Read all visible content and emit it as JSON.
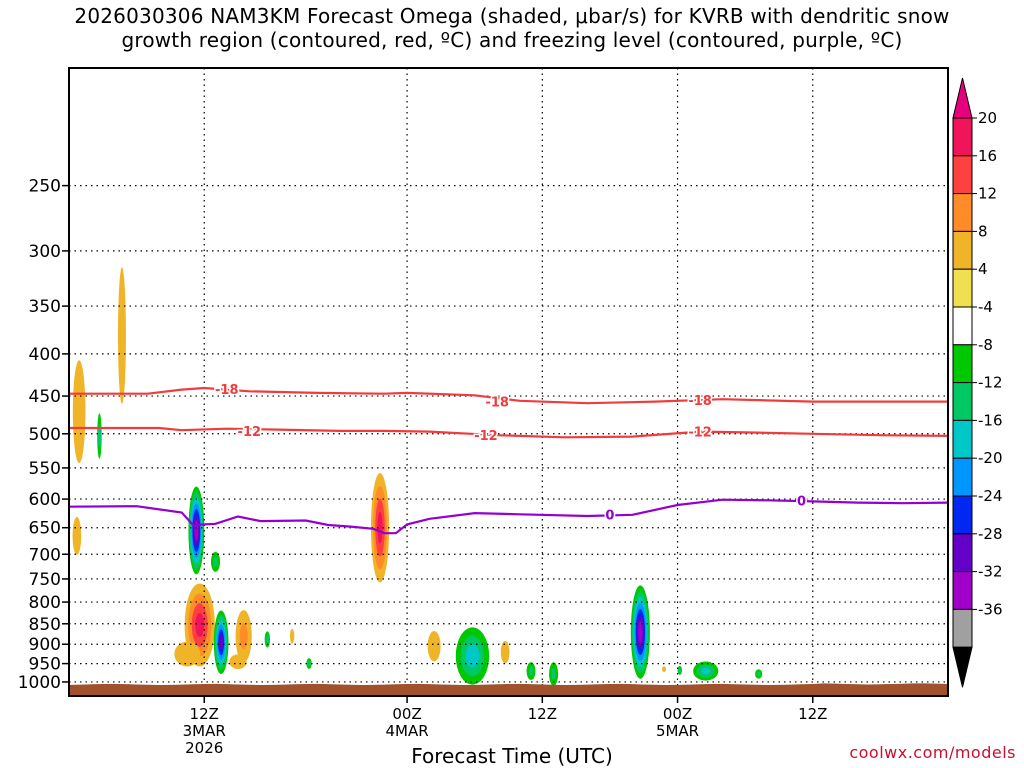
{
  "title": {
    "line1": "2026030306 NAM3KM Forecast Omega (shaded, μbar/s) for KVRB with dendritic snow",
    "line2": "growth region (contoured, red, ºC) and freezing level (contoured, purple, ºC)"
  },
  "credit": "coolwx.com/models",
  "chart_data": {
    "type": "heatmap",
    "xlabel": "Forecast Time (UTC)",
    "ylabel": "",
    "x_range_hours": [
      -6,
      72
    ],
    "x_ticks": [
      {
        "hour": 6,
        "lines": [
          "12Z",
          "3MAR",
          "2026"
        ]
      },
      {
        "hour": 24,
        "lines": [
          "00Z",
          "4MAR"
        ]
      },
      {
        "hour": 36,
        "lines": [
          "12Z"
        ]
      },
      {
        "hour": 48,
        "lines": [
          "00Z",
          "5MAR"
        ]
      },
      {
        "hour": 60,
        "lines": [
          "12Z"
        ]
      }
    ],
    "y_scale": "log-pressure",
    "y_range_hPa": [
      1040,
      180
    ],
    "y_ticks": [
      250,
      300,
      350,
      400,
      450,
      500,
      550,
      600,
      650,
      700,
      750,
      800,
      850,
      900,
      950,
      1000
    ],
    "colorbar": {
      "labels": [
        "20",
        "16",
        "12",
        "8",
        "4",
        "-4",
        "-8",
        "-12",
        "-16",
        "-20",
        "-24",
        "-28",
        "-32",
        "-36"
      ],
      "colors": [
        "#f0145a",
        "#ff4040",
        "#ff8c28",
        "#f0b428",
        "#f0e050",
        "#ffffff",
        "#00c800",
        "#00c864",
        "#00c8c8",
        "#0096ff",
        "#0028f0",
        "#6400c8",
        "#a000c8",
        "#a0a0a0"
      ],
      "upper_arrow": "#e6007e",
      "lower_arrow": "#000000"
    },
    "contours": [
      {
        "level": "-18",
        "color": "#f03c3c",
        "points": [
          [
            -6,
            447
          ],
          [
            1,
            447
          ],
          [
            4,
            442
          ],
          [
            6,
            440
          ],
          [
            10,
            444
          ],
          [
            16,
            446
          ],
          [
            22,
            447
          ],
          [
            24,
            446
          ],
          [
            30,
            449
          ],
          [
            34,
            456
          ],
          [
            40,
            459
          ],
          [
            46,
            457
          ],
          [
            52,
            454
          ],
          [
            60,
            457
          ],
          [
            66,
            457
          ],
          [
            72,
            457
          ]
        ],
        "labels": [
          [
            8,
            441
          ],
          [
            32,
            457
          ],
          [
            50,
            455
          ]
        ]
      },
      {
        "level": "-12",
        "color": "#f03c3c",
        "points": [
          [
            -6,
            492
          ],
          [
            2,
            492
          ],
          [
            4,
            495
          ],
          [
            8,
            493
          ],
          [
            12,
            494
          ],
          [
            18,
            496
          ],
          [
            22,
            496
          ],
          [
            26,
            497
          ],
          [
            32,
            502
          ],
          [
            38,
            505
          ],
          [
            44,
            504
          ],
          [
            50,
            497
          ],
          [
            54,
            498
          ],
          [
            60,
            500
          ],
          [
            66,
            502
          ],
          [
            72,
            503
          ]
        ],
        "labels": [
          [
            10,
            496
          ],
          [
            31,
            502
          ],
          [
            50,
            497
          ]
        ]
      },
      {
        "level": "0",
        "color": "#9400d3",
        "points": [
          [
            -6,
            613
          ],
          [
            0,
            612
          ],
          [
            4,
            623
          ],
          [
            5,
            645
          ],
          [
            7,
            643
          ],
          [
            9,
            630
          ],
          [
            11,
            638
          ],
          [
            15,
            637
          ],
          [
            17,
            645
          ],
          [
            19,
            648
          ],
          [
            21,
            652
          ],
          [
            22,
            660
          ],
          [
            23,
            660
          ],
          [
            24,
            644
          ],
          [
            26,
            634
          ],
          [
            30,
            624
          ],
          [
            34,
            626
          ],
          [
            40,
            629
          ],
          [
            44,
            627
          ],
          [
            48,
            610
          ],
          [
            52,
            601
          ],
          [
            56,
            602
          ],
          [
            60,
            604
          ],
          [
            64,
            606
          ],
          [
            68,
            607
          ],
          [
            72,
            606
          ]
        ],
        "labels": [
          [
            42,
            626
          ],
          [
            59,
            602
          ]
        ]
      }
    ],
    "omega_blobs": [
      {
        "x": -5.1,
        "p": 470,
        "rx": 0.8,
        "rp": 95,
        "value": 6
      },
      {
        "x": -5.3,
        "p": 665,
        "rx": 0.6,
        "rp": 55,
        "value": 5
      },
      {
        "x": -3.3,
        "p": 503,
        "rx": 0.25,
        "rp": 40,
        "value": -9
      },
      {
        "x": -1.3,
        "p": 380,
        "rx": 0.55,
        "rp": 110,
        "value": 5
      },
      {
        "x": 5.3,
        "p": 655,
        "rx": 0.75,
        "rp": 85,
        "value": -30
      },
      {
        "x": 5.6,
        "p": 853,
        "rx": 1.5,
        "rp": 110,
        "value": 17
      },
      {
        "x": 7.5,
        "p": 895,
        "rx": 0.7,
        "rp": 85,
        "value": -26
      },
      {
        "x": 9.5,
        "p": 880,
        "rx": 0.9,
        "rp": 80,
        "value": 9
      },
      {
        "x": 7.0,
        "p": 715,
        "rx": 0.5,
        "rp": 25,
        "value": -9
      },
      {
        "x": 4.5,
        "p": 925,
        "rx": 1.8,
        "rp": 50,
        "value": 5
      },
      {
        "x": 9.0,
        "p": 945,
        "rx": 1.2,
        "rp": 30,
        "value": 5
      },
      {
        "x": 11.6,
        "p": 888,
        "rx": 0.3,
        "rp": 25,
        "value": -9
      },
      {
        "x": 13.8,
        "p": 880,
        "rx": 0.3,
        "rp": 28,
        "value": 5
      },
      {
        "x": 15.3,
        "p": 950,
        "rx": 0.3,
        "rp": 18,
        "value": -9
      },
      {
        "x": 21.6,
        "p": 650,
        "rx": 0.9,
        "rp": 110,
        "value": 17
      },
      {
        "x": 26.4,
        "p": 905,
        "rx": 0.9,
        "rp": 60,
        "value": 5
      },
      {
        "x": 29.8,
        "p": 930,
        "rx": 1.7,
        "rp": 85,
        "value": -14
      },
      {
        "x": 32.7,
        "p": 920,
        "rx": 0.6,
        "rp": 45,
        "value": 5
      },
      {
        "x": 35.0,
        "p": 970,
        "rx": 0.5,
        "rp": 30,
        "value": -9
      },
      {
        "x": 37.0,
        "p": 978,
        "rx": 0.5,
        "rp": 40,
        "value": -9
      },
      {
        "x": 44.7,
        "p": 870,
        "rx": 0.9,
        "rp": 120,
        "value": -30
      },
      {
        "x": 46.8,
        "p": 965,
        "rx": 0.2,
        "rp": 12,
        "value": 5
      },
      {
        "x": 48.2,
        "p": 968,
        "rx": 0.25,
        "rp": 15,
        "value": -9
      },
      {
        "x": 50.5,
        "p": 970,
        "rx": 1.3,
        "rp": 30,
        "value": -13
      },
      {
        "x": 55.2,
        "p": 978,
        "rx": 0.4,
        "rp": 16,
        "value": -9
      }
    ],
    "ground_color": "#a0522d"
  }
}
